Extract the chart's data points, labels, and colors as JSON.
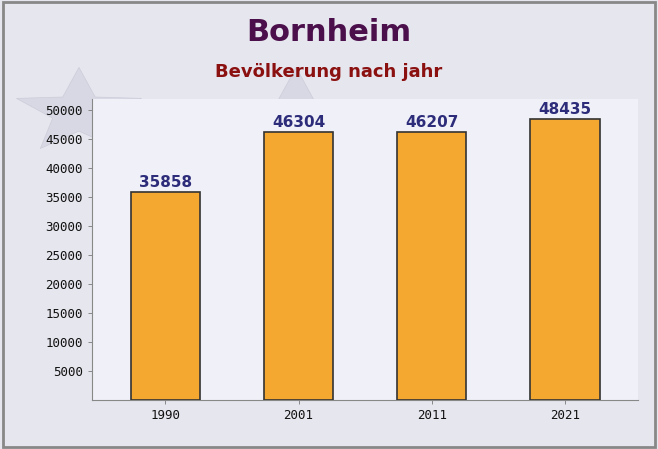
{
  "title": "Bornheim",
  "subtitle": "Bevölkerung nach jahr",
  "categories": [
    "1990",
    "2001",
    "2011",
    "2021"
  ],
  "values": [
    35858,
    46304,
    46207,
    48435
  ],
  "bar_color": "#F5A830",
  "bar_edge_color": "#333333",
  "bar_edge_width": 1.2,
  "title_color": "#4B0F4B",
  "subtitle_color": "#8B1010",
  "label_color": "#2C2C7A",
  "tick_color": "#111111",
  "background_color": "#E6E6EE",
  "plot_bg_color": "#F0F0F8",
  "ylim": [
    0,
    52000
  ],
  "yticks": [
    5000,
    10000,
    15000,
    20000,
    25000,
    30000,
    35000,
    40000,
    45000,
    50000
  ],
  "title_fontsize": 22,
  "subtitle_fontsize": 13,
  "label_fontsize": 11,
  "tick_fontsize": 9,
  "border_color": "#888888"
}
